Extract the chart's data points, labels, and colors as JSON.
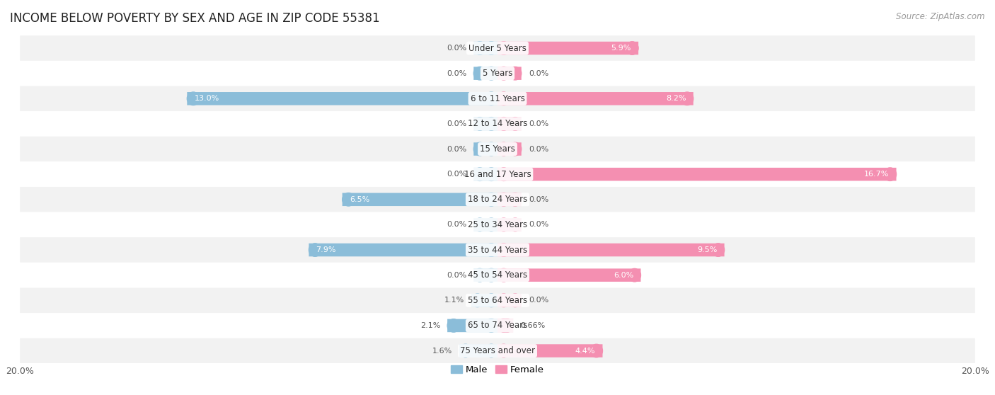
{
  "title": "INCOME BELOW POVERTY BY SEX AND AGE IN ZIP CODE 55381",
  "source": "Source: ZipAtlas.com",
  "categories": [
    "Under 5 Years",
    "5 Years",
    "6 to 11 Years",
    "12 to 14 Years",
    "15 Years",
    "16 and 17 Years",
    "18 to 24 Years",
    "25 to 34 Years",
    "35 to 44 Years",
    "45 to 54 Years",
    "55 to 64 Years",
    "65 to 74 Years",
    "75 Years and over"
  ],
  "male_values": [
    0.0,
    0.0,
    13.0,
    0.0,
    0.0,
    0.0,
    6.5,
    0.0,
    7.9,
    0.0,
    1.1,
    2.1,
    1.6
  ],
  "female_values": [
    5.9,
    0.0,
    8.2,
    0.0,
    0.0,
    16.7,
    0.0,
    0.0,
    9.5,
    6.0,
    0.0,
    0.66,
    4.4
  ],
  "male_color": "#8bbdd9",
  "female_color": "#f48fb1",
  "male_label": "Male",
  "female_label": "Female",
  "stub_value": 1.0,
  "xlim": 20.0,
  "bar_height": 0.52,
  "row_bg_light": "#f2f2f2",
  "row_bg_dark": "#e8e8e8",
  "title_fontsize": 12,
  "source_fontsize": 8.5,
  "label_fontsize": 9,
  "category_fontsize": 8.5,
  "legend_fontsize": 9.5,
  "value_fontsize": 8.0
}
